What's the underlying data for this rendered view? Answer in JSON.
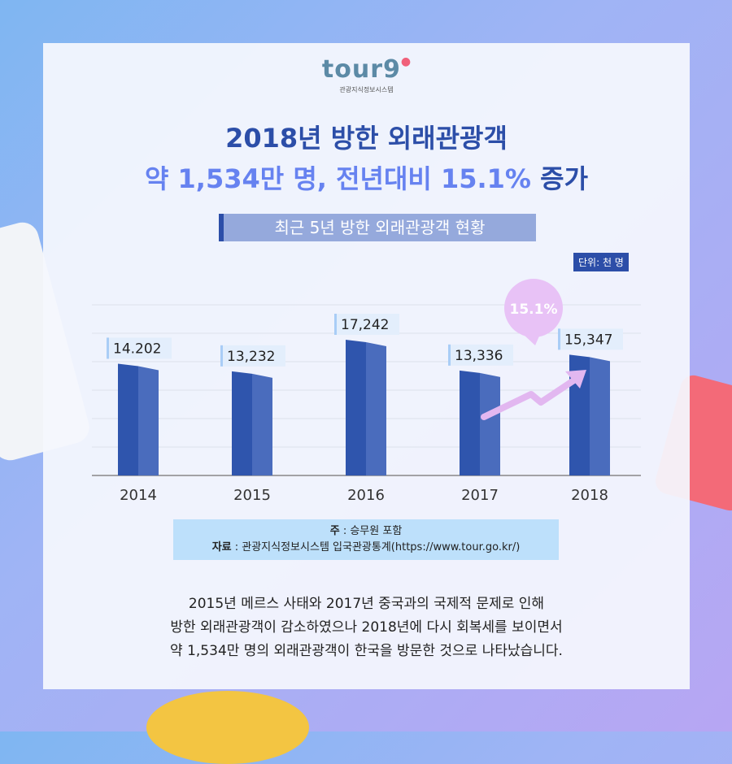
{
  "logo": {
    "mark": "tour9",
    "subtitle": "관광지식정보시스템"
  },
  "title": {
    "line1": "2018년 방한 외래관광객",
    "line2_accent": "약 1,534만 명, 전년대비 15.1%",
    "line2_end": "증가"
  },
  "subtitle": "최근 5년 방한 외래관광객 현황",
  "unit": "단위: 천 명",
  "chart_data": {
    "type": "bar",
    "title": "최근 5년 방한 외래관광객 현황",
    "categories": [
      "2014",
      "2015",
      "2016",
      "2017",
      "2018"
    ],
    "values": [
      14202,
      13232,
      17242,
      13336,
      15347
    ],
    "value_labels": [
      "14.202",
      "13,232",
      "17,242",
      "13,336",
      "15,347"
    ],
    "annotation": "15.1%",
    "ylabel": "단위: 천 명",
    "ylim": [
      0,
      18000
    ],
    "grid": true,
    "colors": {
      "bar": "#2f55ad",
      "bar_shade": "#4a6cbd",
      "arrow": "#e2b7f0",
      "bubble": "#e8c2f6"
    }
  },
  "notes": {
    "note_label": "주",
    "note_text": ": 승무원 포함",
    "source_label": "자료",
    "source_text": ": 관광지식정보시스템 입국관광통계(https://www.tour.go.kr/)"
  },
  "body": [
    "2015년 메르스 사태와 2017년 중국과의 국제적 문제로 인해",
    "방한 외래관광객이 감소하였으나 2018년에 다시 회복세를 보이면서",
    "약 1,534만 명의 외래관광객이 한국을 방문한 것으로 나타났습니다."
  ]
}
